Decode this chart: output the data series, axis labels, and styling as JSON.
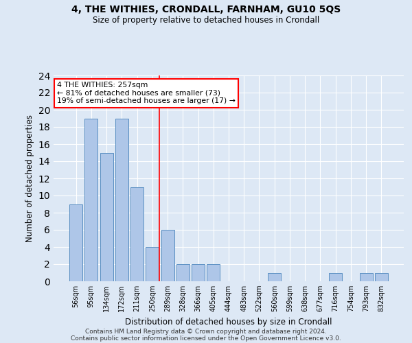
{
  "title": "4, THE WITHIES, CRONDALL, FARNHAM, GU10 5QS",
  "subtitle": "Size of property relative to detached houses in Crondall",
  "xlabel": "Distribution of detached houses by size in Crondall",
  "ylabel": "Number of detached properties",
  "categories": [
    "56sqm",
    "95sqm",
    "134sqm",
    "172sqm",
    "211sqm",
    "250sqm",
    "289sqm",
    "328sqm",
    "366sqm",
    "405sqm",
    "444sqm",
    "483sqm",
    "522sqm",
    "560sqm",
    "599sqm",
    "638sqm",
    "677sqm",
    "716sqm",
    "754sqm",
    "793sqm",
    "832sqm"
  ],
  "values": [
    9,
    19,
    15,
    19,
    11,
    4,
    6,
    2,
    2,
    2,
    0,
    0,
    0,
    1,
    0,
    0,
    0,
    1,
    0,
    1,
    1
  ],
  "bar_color": "#aec6e8",
  "bar_edge_color": "#5a8fc2",
  "annotation_line1": "4 THE WITHIES: 257sqm",
  "annotation_line2": "← 81% of detached houses are smaller (73)",
  "annotation_line3": "19% of semi-detached houses are larger (17) →",
  "vline_x": 5.45,
  "vline_color": "red",
  "ylim": [
    0,
    24
  ],
  "yticks": [
    0,
    2,
    4,
    6,
    8,
    10,
    12,
    14,
    16,
    18,
    20,
    22,
    24
  ],
  "footer1": "Contains HM Land Registry data © Crown copyright and database right 2024.",
  "footer2": "Contains public sector information licensed under the Open Government Licence v3.0.",
  "bg_color": "#dde8f5",
  "plot_bg_color": "#dde8f5"
}
